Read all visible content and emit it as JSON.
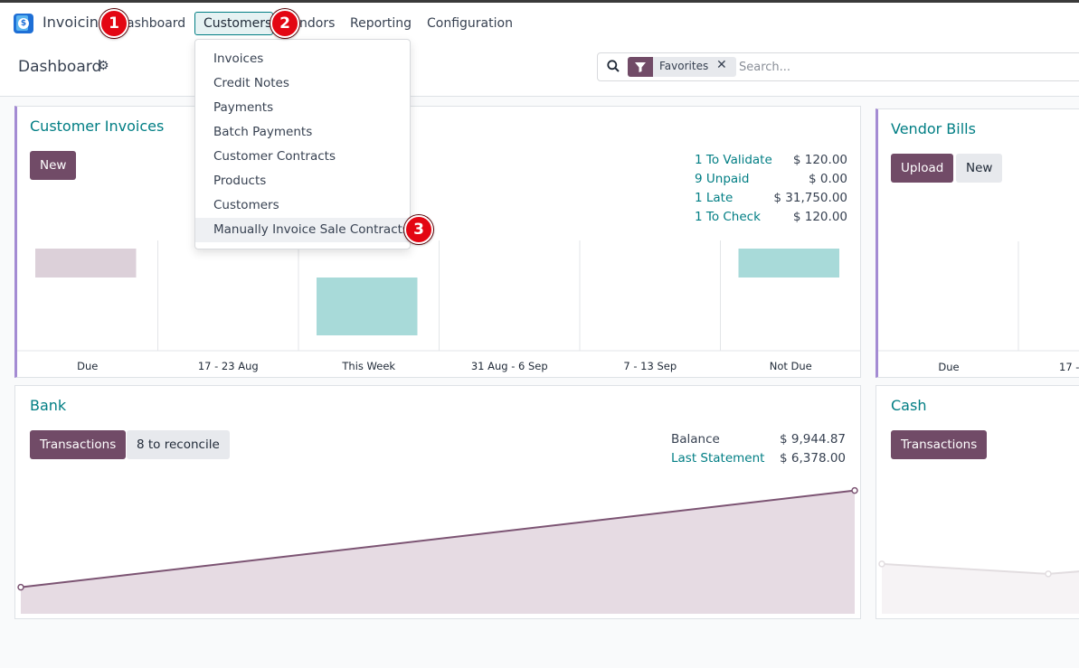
{
  "navbar": {
    "brand": "Invoicing",
    "items": [
      "Dashboard",
      "Customers",
      "Vendors",
      "Reporting",
      "Configuration"
    ],
    "dashboard_visible": "ashboard",
    "vendors_visible": "ndors"
  },
  "badges": [
    "1",
    "2",
    "3"
  ],
  "control": {
    "title": "Dashboard",
    "facet_label": "Favorites",
    "search_placeholder": "Search..."
  },
  "customers_menu": {
    "items": [
      "Invoices",
      "Credit Notes",
      "Payments",
      "Batch Payments",
      "Customer Contracts",
      "Products",
      "Customers",
      "Manually Invoice Sale Contracts"
    ]
  },
  "customer_invoices": {
    "title": "Customer Invoices",
    "new_label": "New",
    "stats": [
      {
        "label": "1 To Validate",
        "value": "$ 120.00"
      },
      {
        "label": "9 Unpaid",
        "value": "$ 0.00"
      },
      {
        "label": "1 Late",
        "value": "$ 31,750.00"
      },
      {
        "label": "1 To Check",
        "value": "$ 120.00"
      }
    ],
    "chart_data": {
      "type": "bar",
      "categories": [
        "Due",
        "17 - 23 Aug",
        "This Week",
        "31 Aug - 6 Sep",
        "7 - 13 Sep",
        "Not Due"
      ],
      "values": [
        1,
        0,
        2,
        0,
        0,
        1
      ],
      "colors": [
        "#dcd0d9",
        "#dcd0d9",
        "#a8dad9",
        "#a8dad9",
        "#a8dad9",
        "#a8dad9"
      ],
      "grid": "vertical"
    }
  },
  "vendor_bills": {
    "title": "Vendor Bills",
    "upload_label": "Upload",
    "new_label": "New",
    "categories": [
      "Due",
      "17 -"
    ]
  },
  "bank": {
    "title": "Bank",
    "transactions_label": "Transactions",
    "reconcile_label": "8 to reconcile",
    "balance_label": "Balance",
    "balance_value": "$ 9,944.87",
    "statement_label": "Last Statement",
    "statement_value": "$ 6,378.00",
    "chart_data": {
      "type": "area",
      "x": [
        0,
        1
      ],
      "y": [
        6378.0,
        9944.87
      ],
      "color": "#7c5473"
    }
  },
  "cash": {
    "title": "Cash",
    "transactions_label": "Transactions",
    "chart_data": {
      "type": "area",
      "x": [
        0,
        1,
        2
      ],
      "y": [
        3,
        2.4,
        3.2
      ],
      "color": "#e2dde0"
    }
  }
}
